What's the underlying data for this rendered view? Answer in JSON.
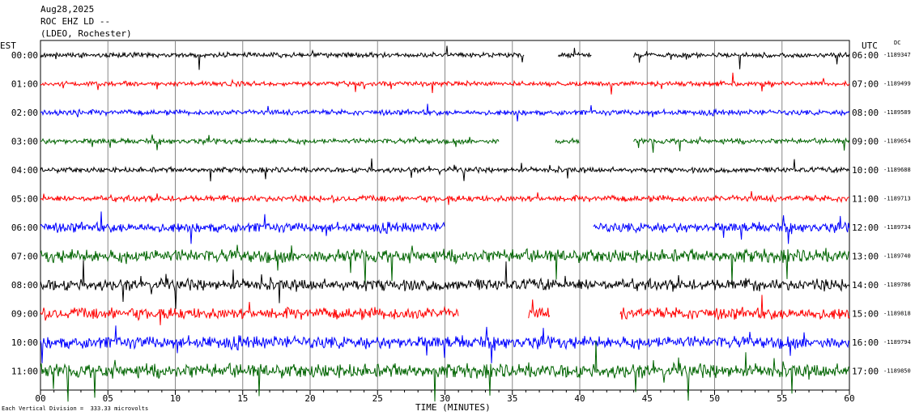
{
  "header": {
    "date": "Aug28,2025",
    "station": "ROC EHZ LD --",
    "network": "(LDEO, Rochester)"
  },
  "labels": {
    "left_zone": "EST",
    "right_zone": "UTC",
    "dc": "DC",
    "xaxis_title": "TIME (MINUTES)",
    "scale_note": "Each Vertical Division =  333.33 microvolts"
  },
  "colors": {
    "black": "#000000",
    "red": "#ff0000",
    "blue": "#0000ff",
    "green": "#006400"
  },
  "chart_data": {
    "type": "line",
    "title": "",
    "xlabel": "TIME (MINUTES)",
    "ylabel": "",
    "xlim": [
      0,
      60
    ],
    "x_ticks": [
      "00",
      "05",
      "10",
      "15",
      "20",
      "25",
      "30",
      "35",
      "40",
      "45",
      "50",
      "55",
      "60"
    ],
    "grid": true,
    "rows": [
      {
        "est": "00:00",
        "utc": "06:00",
        "dc": "-1189347",
        "color": "black",
        "amplitude": 0.55,
        "gaps": [
          [
            35.9,
            38.4
          ],
          [
            40.9,
            44.0
          ]
        ]
      },
      {
        "est": "01:00",
        "utc": "07:00",
        "dc": "-1189499",
        "color": "red",
        "amplitude": 0.55,
        "gaps": []
      },
      {
        "est": "02:00",
        "utc": "08:00",
        "dc": "-1189589",
        "color": "blue",
        "amplitude": 0.6,
        "gaps": []
      },
      {
        "est": "03:00",
        "utc": "09:00",
        "dc": "-1189654",
        "color": "green",
        "amplitude": 0.6,
        "gaps": [
          [
            34.0,
            38.2
          ],
          [
            40.0,
            44.0
          ]
        ]
      },
      {
        "est": "04:00",
        "utc": "10:00",
        "dc": "-1189688",
        "color": "black",
        "amplitude": 0.6,
        "gaps": []
      },
      {
        "est": "05:00",
        "utc": "11:00",
        "dc": "-1189713",
        "color": "red",
        "amplitude": 0.7,
        "gaps": []
      },
      {
        "est": "06:00",
        "utc": "12:00",
        "dc": "-1189734",
        "color": "blue",
        "amplitude": 1.1,
        "gaps": [
          [
            30.0,
            41.0
          ]
        ]
      },
      {
        "est": "07:00",
        "utc": "13:00",
        "dc": "-1189740",
        "color": "green",
        "amplitude": 1.5,
        "gaps": []
      },
      {
        "est": "08:00",
        "utc": "14:00",
        "dc": "-1189786",
        "color": "black",
        "amplitude": 1.3,
        "gaps": []
      },
      {
        "est": "09:00",
        "utc": "15:00",
        "dc": "-1189818",
        "color": "red",
        "amplitude": 1.3,
        "gaps": [
          [
            31.0,
            36.2
          ],
          [
            37.8,
            43.0
          ]
        ]
      },
      {
        "est": "10:00",
        "utc": "16:00",
        "dc": "-1189794",
        "color": "blue",
        "amplitude": 1.4,
        "gaps": []
      },
      {
        "est": "11:00",
        "utc": "17:00",
        "dc": "-1189850",
        "color": "green",
        "amplitude": 1.6,
        "gaps": []
      }
    ]
  }
}
